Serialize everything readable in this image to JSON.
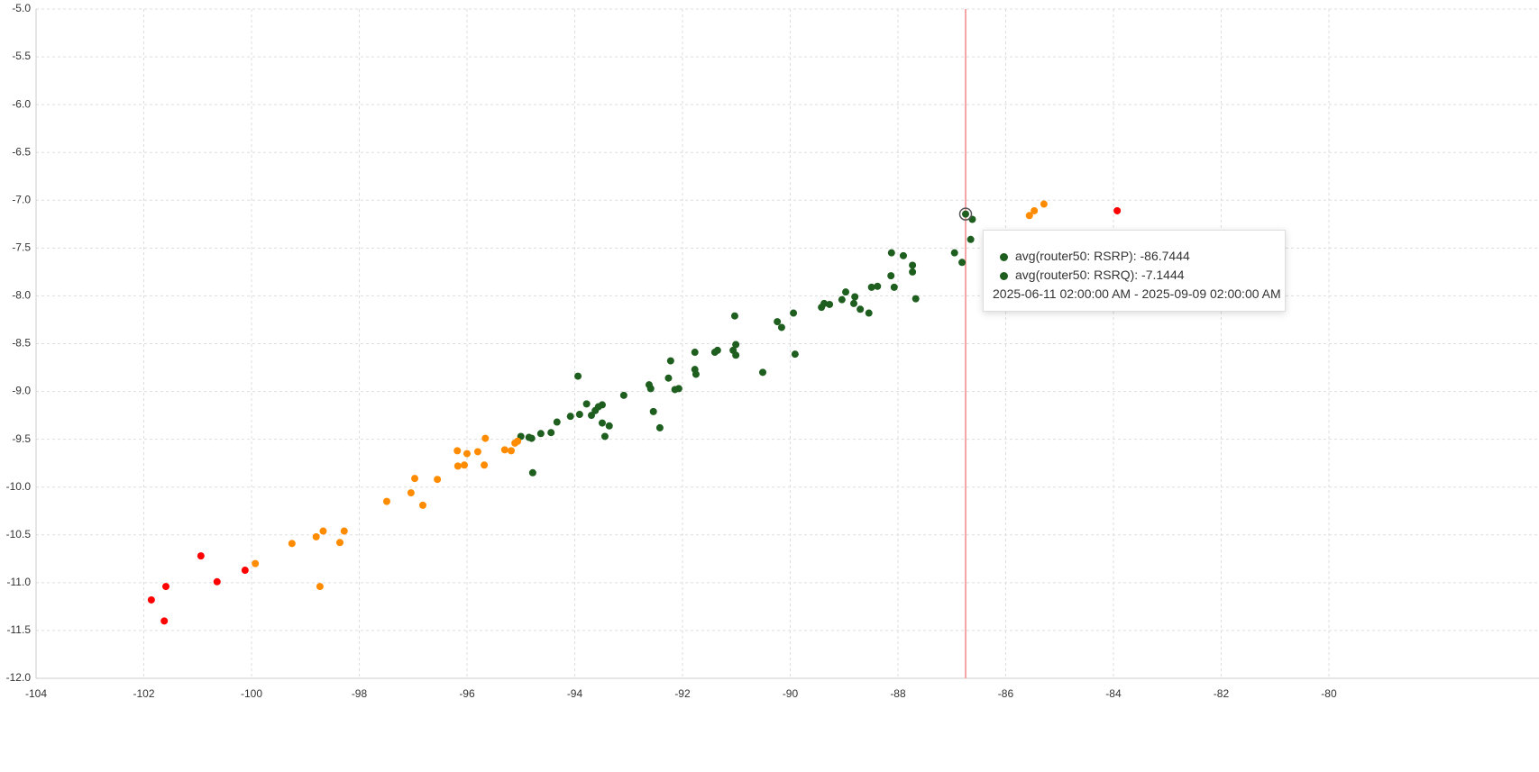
{
  "chart_data": {
    "type": "scatter",
    "xlim": [
      -104,
      -76.1
    ],
    "ylim": [
      -12,
      -5
    ],
    "xticks": [
      -104,
      -102,
      -100,
      -98,
      -96,
      -94,
      -92,
      -90,
      -88,
      -86,
      -84,
      -82,
      -80
    ],
    "yticks": [
      {
        "value": -5,
        "label": "-5.0"
      },
      -5.5,
      {
        "value": -6,
        "label": "-6.0"
      },
      -6.5,
      {
        "value": -7,
        "label": "-7.0"
      },
      -7.5,
      {
        "value": -8,
        "label": "-8.0"
      },
      -8.5,
      {
        "value": -9,
        "label": "-9.0"
      },
      -9.5,
      {
        "value": -10,
        "label": "-10.0"
      },
      -10.5,
      {
        "value": -11,
        "label": "-11.0"
      },
      -11.5,
      {
        "value": -12,
        "label": "-12.0"
      }
    ],
    "grid": true,
    "series": [
      {
        "color": "#1e5e1e",
        "x": [
          -86.7444,
          -86.62,
          -86.65,
          -86.95,
          -86.81,
          -88.12,
          -87.9,
          -87.73,
          -87.73,
          -87.67,
          -88.13,
          -88.07,
          -88.38,
          -88.49,
          -88.97,
          -89.04,
          -88.8,
          -88.82,
          -88.7,
          -88.54,
          -89.27,
          -89.37,
          -89.42,
          -89.94,
          -90.24,
          -90.16,
          -89.91,
          -90.51,
          -91.03,
          -91.01,
          -91.06,
          -91.01,
          -91.35,
          -91.4,
          -91.77,
          -91.77,
          -91.75,
          -92.22,
          -92.26,
          -92.07,
          -92.14,
          -92.62,
          -92.59,
          -92.54,
          -92.42,
          -93.09,
          -93.94,
          -93.78,
          -93.69,
          -93.62,
          -93.56,
          -93.49,
          -93.49,
          -93.36,
          -93.44,
          -93.91,
          -94.08,
          -94.33,
          -94.44,
          -94.63,
          -94.85,
          -94.8,
          -95.0,
          -94.78
        ],
        "values": [
          -7.1444,
          -7.2,
          -7.41,
          -7.55,
          -7.65,
          -7.55,
          -7.58,
          -7.68,
          -7.75,
          -8.03,
          -7.79,
          -7.91,
          -7.9,
          -7.91,
          -7.96,
          -8.04,
          -8.01,
          -8.08,
          -8.14,
          -8.18,
          -8.09,
          -8.08,
          -8.12,
          -8.18,
          -8.27,
          -8.33,
          -8.61,
          -8.8,
          -8.21,
          -8.51,
          -8.57,
          -8.62,
          -8.57,
          -8.59,
          -8.59,
          -8.77,
          -8.82,
          -8.68,
          -8.86,
          -8.97,
          -8.98,
          -8.93,
          -8.97,
          -9.21,
          -9.38,
          -9.04,
          -8.84,
          -9.13,
          -9.25,
          -9.2,
          -9.16,
          -9.14,
          -9.33,
          -9.36,
          -9.47,
          -9.24,
          -9.26,
          -9.32,
          -9.43,
          -9.44,
          -9.48,
          -9.49,
          -9.47,
          -9.85
        ]
      },
      {
        "color": "#ff8c00",
        "x": [
          -85.29,
          -85.47,
          -85.56,
          -99.93,
          -99.25,
          -98.8,
          -98.67,
          -98.28,
          -98.36,
          -98.73,
          -97.49,
          -97.04,
          -96.97,
          -96.82,
          -96.55,
          -96.18,
          -96.17,
          -96.0,
          -96.05,
          -95.8,
          -95.66,
          -95.68,
          -95.3,
          -95.18,
          -95.11,
          -95.06
        ],
        "values": [
          -7.04,
          -7.11,
          -7.16,
          -10.8,
          -10.59,
          -10.52,
          -10.46,
          -10.46,
          -10.58,
          -11.04,
          -10.15,
          -10.06,
          -9.91,
          -10.19,
          -9.92,
          -9.62,
          -9.78,
          -9.65,
          -9.77,
          -9.63,
          -9.49,
          -9.77,
          -9.61,
          -9.62,
          -9.54,
          -9.52
        ]
      },
      {
        "color": "#ff0000",
        "x": [
          -101.86,
          -101.59,
          -101.62,
          -100.94,
          -100.64,
          -100.12,
          -83.93
        ],
        "values": [
          -11.18,
          -11.04,
          -11.4,
          -10.72,
          -10.99,
          -10.87,
          -7.11
        ]
      }
    ],
    "hover": {
      "x": -86.7444,
      "y": -7.1444,
      "line_color": "#f4a6a6"
    },
    "tooltip": {
      "items": [
        {
          "text": "avg(router50: RSRP): -86.7444",
          "color": "#1e5e1e"
        },
        {
          "text": "avg(router50: RSRQ): -7.1444",
          "color": "#1e5e1e"
        }
      ],
      "range": "2025-06-11 02:00:00 AM - 2025-09-09 02:00:00 AM"
    }
  }
}
